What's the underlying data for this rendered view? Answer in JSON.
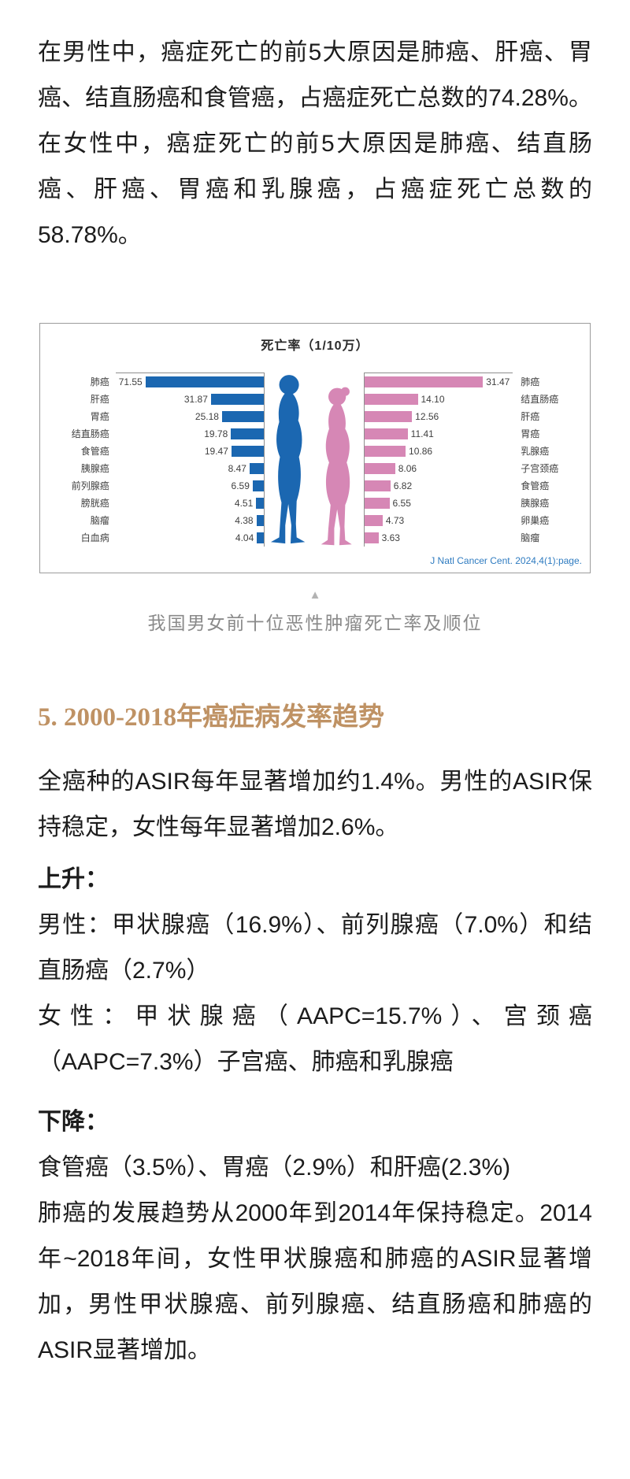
{
  "article": {
    "p1": "在男性中，癌症死亡的前5大原因是肺癌、肝癌、胃癌、结直肠癌和食管癌，占癌症死亡总数的74.28%。在女性中，癌症死亡的前5大原因是肺癌、结直肠癌、肝癌、胃癌和乳腺癌，占癌症死亡总数的58.78%。",
    "figure": {
      "caption_marker": "▲",
      "caption": "我国男女前十位恶性肿瘤死亡率及顺位"
    },
    "section": {
      "heading": "5. 2000-2018年癌症病发率趋势",
      "heading_color": "#bf9264",
      "p2": "全癌种的ASIR每年显著增加约1.4%。男性的ASIR保持稳定，女性每年显著增加2.6%。",
      "label_up": "上升：",
      "p3": "男性：甲状腺癌（16.9%）、前列腺癌（7.0%）和结直肠癌（2.7%）",
      "p4": "女性：甲状腺癌（AAPC=15.7%）、宫颈癌（AAPC=7.3%）子宫癌、肺癌和乳腺癌",
      "label_down": "下降：",
      "p5": "食管癌（3.5%）、胃癌（2.9%）和肝癌(2.3%)",
      "p6": "肺癌的发展趋势从2000年到2014年保持稳定。2014年~2018年间，女性甲状腺癌和肺癌的ASIR显著增加，男性甲状腺癌、前列腺癌、结直肠癌和肺癌的ASIR显著增加。"
    }
  },
  "chart_data": {
    "type": "bar",
    "subtype": "butterfly",
    "title": "死亡率（1/10万）",
    "source": "J Natl Cancer Cent. 2024,4(1):page.",
    "source_color": "#2e7bc0",
    "grid": false,
    "legend_position": "none",
    "male": {
      "name": "男性",
      "color": "#1b67b1",
      "max": 71.55,
      "categories": [
        "肺癌",
        "肝癌",
        "胃癌",
        "结直肠癌",
        "食管癌",
        "胰腺癌",
        "前列腺癌",
        "膀胱癌",
        "脑瘤",
        "白血病"
      ],
      "values": [
        "71.55",
        "31.87",
        "25.18",
        "19.78",
        "19.47",
        "8.47",
        "6.59",
        "4.51",
        "4.38",
        "4.04"
      ]
    },
    "female": {
      "name": "女性",
      "color": "#d687b5",
      "max": 31.47,
      "categories": [
        "肺癌",
        "结直肠癌",
        "肝癌",
        "胃癌",
        "乳腺癌",
        "子宫颈癌",
        "食管癌",
        "胰腺癌",
        "卵巢癌",
        "脑瘤"
      ],
      "values": [
        "31.47",
        "14.10",
        "12.56",
        "11.41",
        "10.86",
        "8.06",
        "6.82",
        "6.55",
        "4.73",
        "3.63"
      ]
    }
  }
}
